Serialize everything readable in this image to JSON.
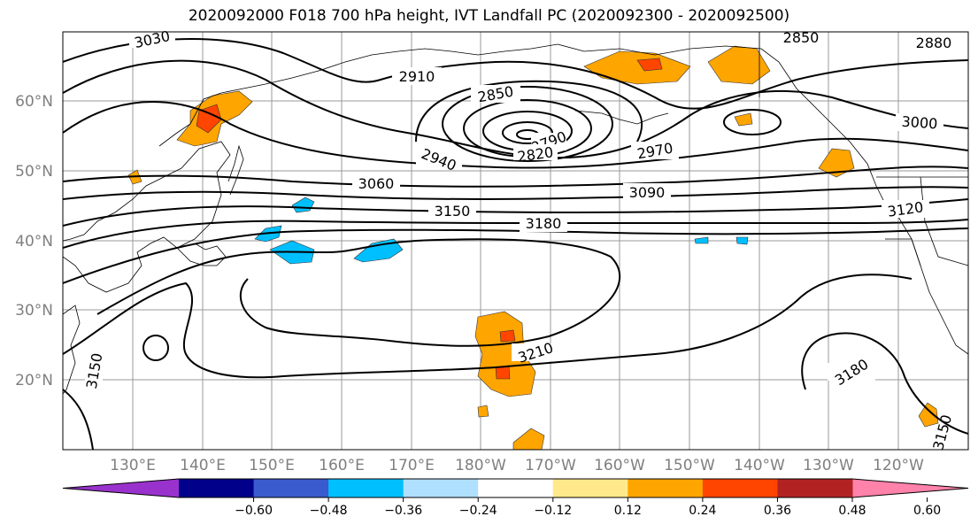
{
  "title": "2020092000 F018 700 hPa height, IVT Landfall PC (2020092300 - 2020092500)",
  "lon_labels": [
    "130°E",
    "140°E",
    "150°E",
    "160°E",
    "170°E",
    "180°W",
    "170°W",
    "160°W",
    "150°W",
    "140°W",
    "130°W",
    "120°W"
  ],
  "lat_labels": [
    "60°N",
    "50°N",
    "40°N",
    "30°N",
    "20°N"
  ],
  "colorbar": {
    "colors": [
      "#9932cc",
      "#00008b",
      "#3a5bcd",
      "#00bfff",
      "#b0e0ff",
      "#ffffff",
      "#ffe98a",
      "#ffa500",
      "#ff4500",
      "#b22222",
      "#ff82ab"
    ],
    "tick_labels": [
      "−0.60",
      "−0.48",
      "−0.36",
      "−0.24",
      "−0.12",
      "0.12",
      "0.24",
      "0.36",
      "0.48",
      "0.60"
    ]
  },
  "contours": {
    "interval": 30,
    "color": "#000000",
    "labels": [
      "3030",
      "2910",
      "2850",
      "2790",
      "2820",
      "2970",
      "2940",
      "2880",
      "2850",
      "3000",
      "3060",
      "3090",
      "3120",
      "3150",
      "3180",
      "3210",
      "3180",
      "3150",
      "3150"
    ]
  },
  "ivt_shading": {
    "positive_colors": [
      "#ffa500",
      "#ff4500"
    ],
    "negative_colors": [
      "#00bfff",
      "#b0e0ff"
    ]
  }
}
